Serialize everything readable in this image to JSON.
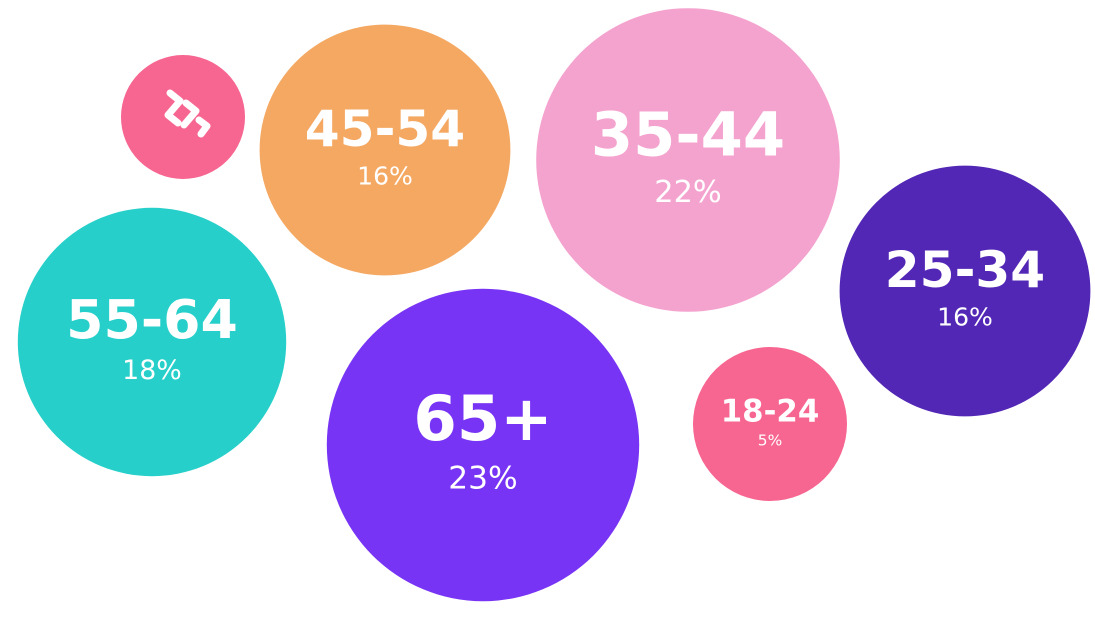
{
  "chart_data": {
    "type": "packed-bubble",
    "categories": [
      "45-54",
      "35-44",
      "25-34",
      "55-64",
      "65+",
      "18-24"
    ],
    "values": [
      16,
      22,
      16,
      18,
      23,
      5
    ],
    "value_labels": [
      "16%",
      "22%",
      "16%",
      "18%",
      "23%",
      "5%"
    ],
    "colors": [
      "#f4a862",
      "#f4a3cf",
      "#5327b5",
      "#26cfc9",
      "#7834f4",
      "#f76591"
    ]
  }
}
